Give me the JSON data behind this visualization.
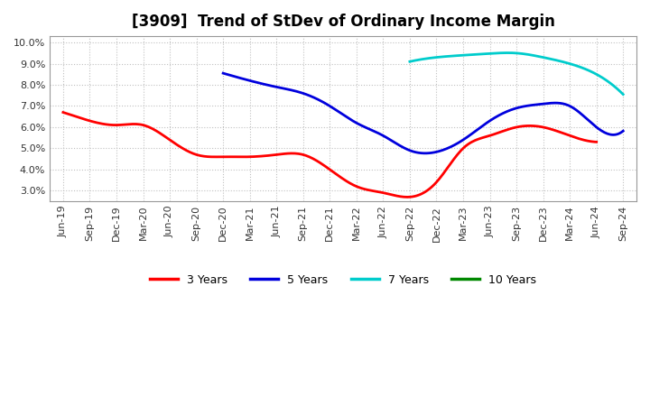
{
  "title": "[3909]  Trend of StDev of Ordinary Income Margin",
  "background_color": "#ffffff",
  "ylim": [
    0.025,
    0.103
  ],
  "yticks": [
    0.03,
    0.04,
    0.05,
    0.06,
    0.07,
    0.08,
    0.09,
    0.1
  ],
  "x_labels": [
    "Jun-19",
    "Sep-19",
    "Dec-19",
    "Mar-20",
    "Jun-20",
    "Sep-20",
    "Dec-20",
    "Mar-21",
    "Jun-21",
    "Sep-21",
    "Dec-21",
    "Mar-22",
    "Jun-22",
    "Sep-22",
    "Dec-22",
    "Mar-23",
    "Jun-23",
    "Sep-23",
    "Dec-23",
    "Mar-24",
    "Jun-24",
    "Sep-24"
  ],
  "series_3yr": {
    "color": "#ff0000",
    "label": "3 Years",
    "x": [
      0,
      1,
      2,
      3,
      4,
      5,
      6,
      7,
      8,
      9,
      10,
      11,
      12,
      13,
      14,
      15,
      16,
      17,
      18,
      19,
      20
    ],
    "y": [
      0.067,
      0.063,
      0.061,
      0.061,
      0.054,
      0.047,
      0.046,
      0.046,
      0.047,
      0.047,
      0.04,
      0.032,
      0.029,
      0.027,
      0.034,
      0.05,
      0.056,
      0.06,
      0.06,
      0.056,
      0.053
    ]
  },
  "series_5yr": {
    "color": "#0000dd",
    "label": "5 Years",
    "x": [
      6,
      7,
      8,
      9,
      10,
      11,
      12,
      13,
      14,
      15,
      16,
      17,
      18,
      19,
      20,
      21
    ],
    "y": [
      0.0855,
      0.082,
      0.079,
      0.076,
      0.07,
      0.062,
      0.056,
      0.049,
      0.0483,
      0.054,
      0.063,
      0.069,
      0.071,
      0.07,
      0.06,
      0.0582
    ]
  },
  "series_7yr": {
    "color": "#00cccc",
    "label": "7 Years",
    "x": [
      13,
      14,
      15,
      16,
      17,
      18,
      19,
      20,
      21
    ],
    "y": [
      0.091,
      0.093,
      0.094,
      0.0948,
      0.095,
      0.093,
      0.09,
      0.085,
      0.0755
    ]
  },
  "series_10yr": {
    "color": "#008800",
    "label": "10 Years",
    "x": [],
    "y": []
  },
  "legend_colors": [
    "#ff0000",
    "#0000dd",
    "#00cccc",
    "#008800"
  ],
  "legend_labels": [
    "3 Years",
    "5 Years",
    "7 Years",
    "10 Years"
  ]
}
